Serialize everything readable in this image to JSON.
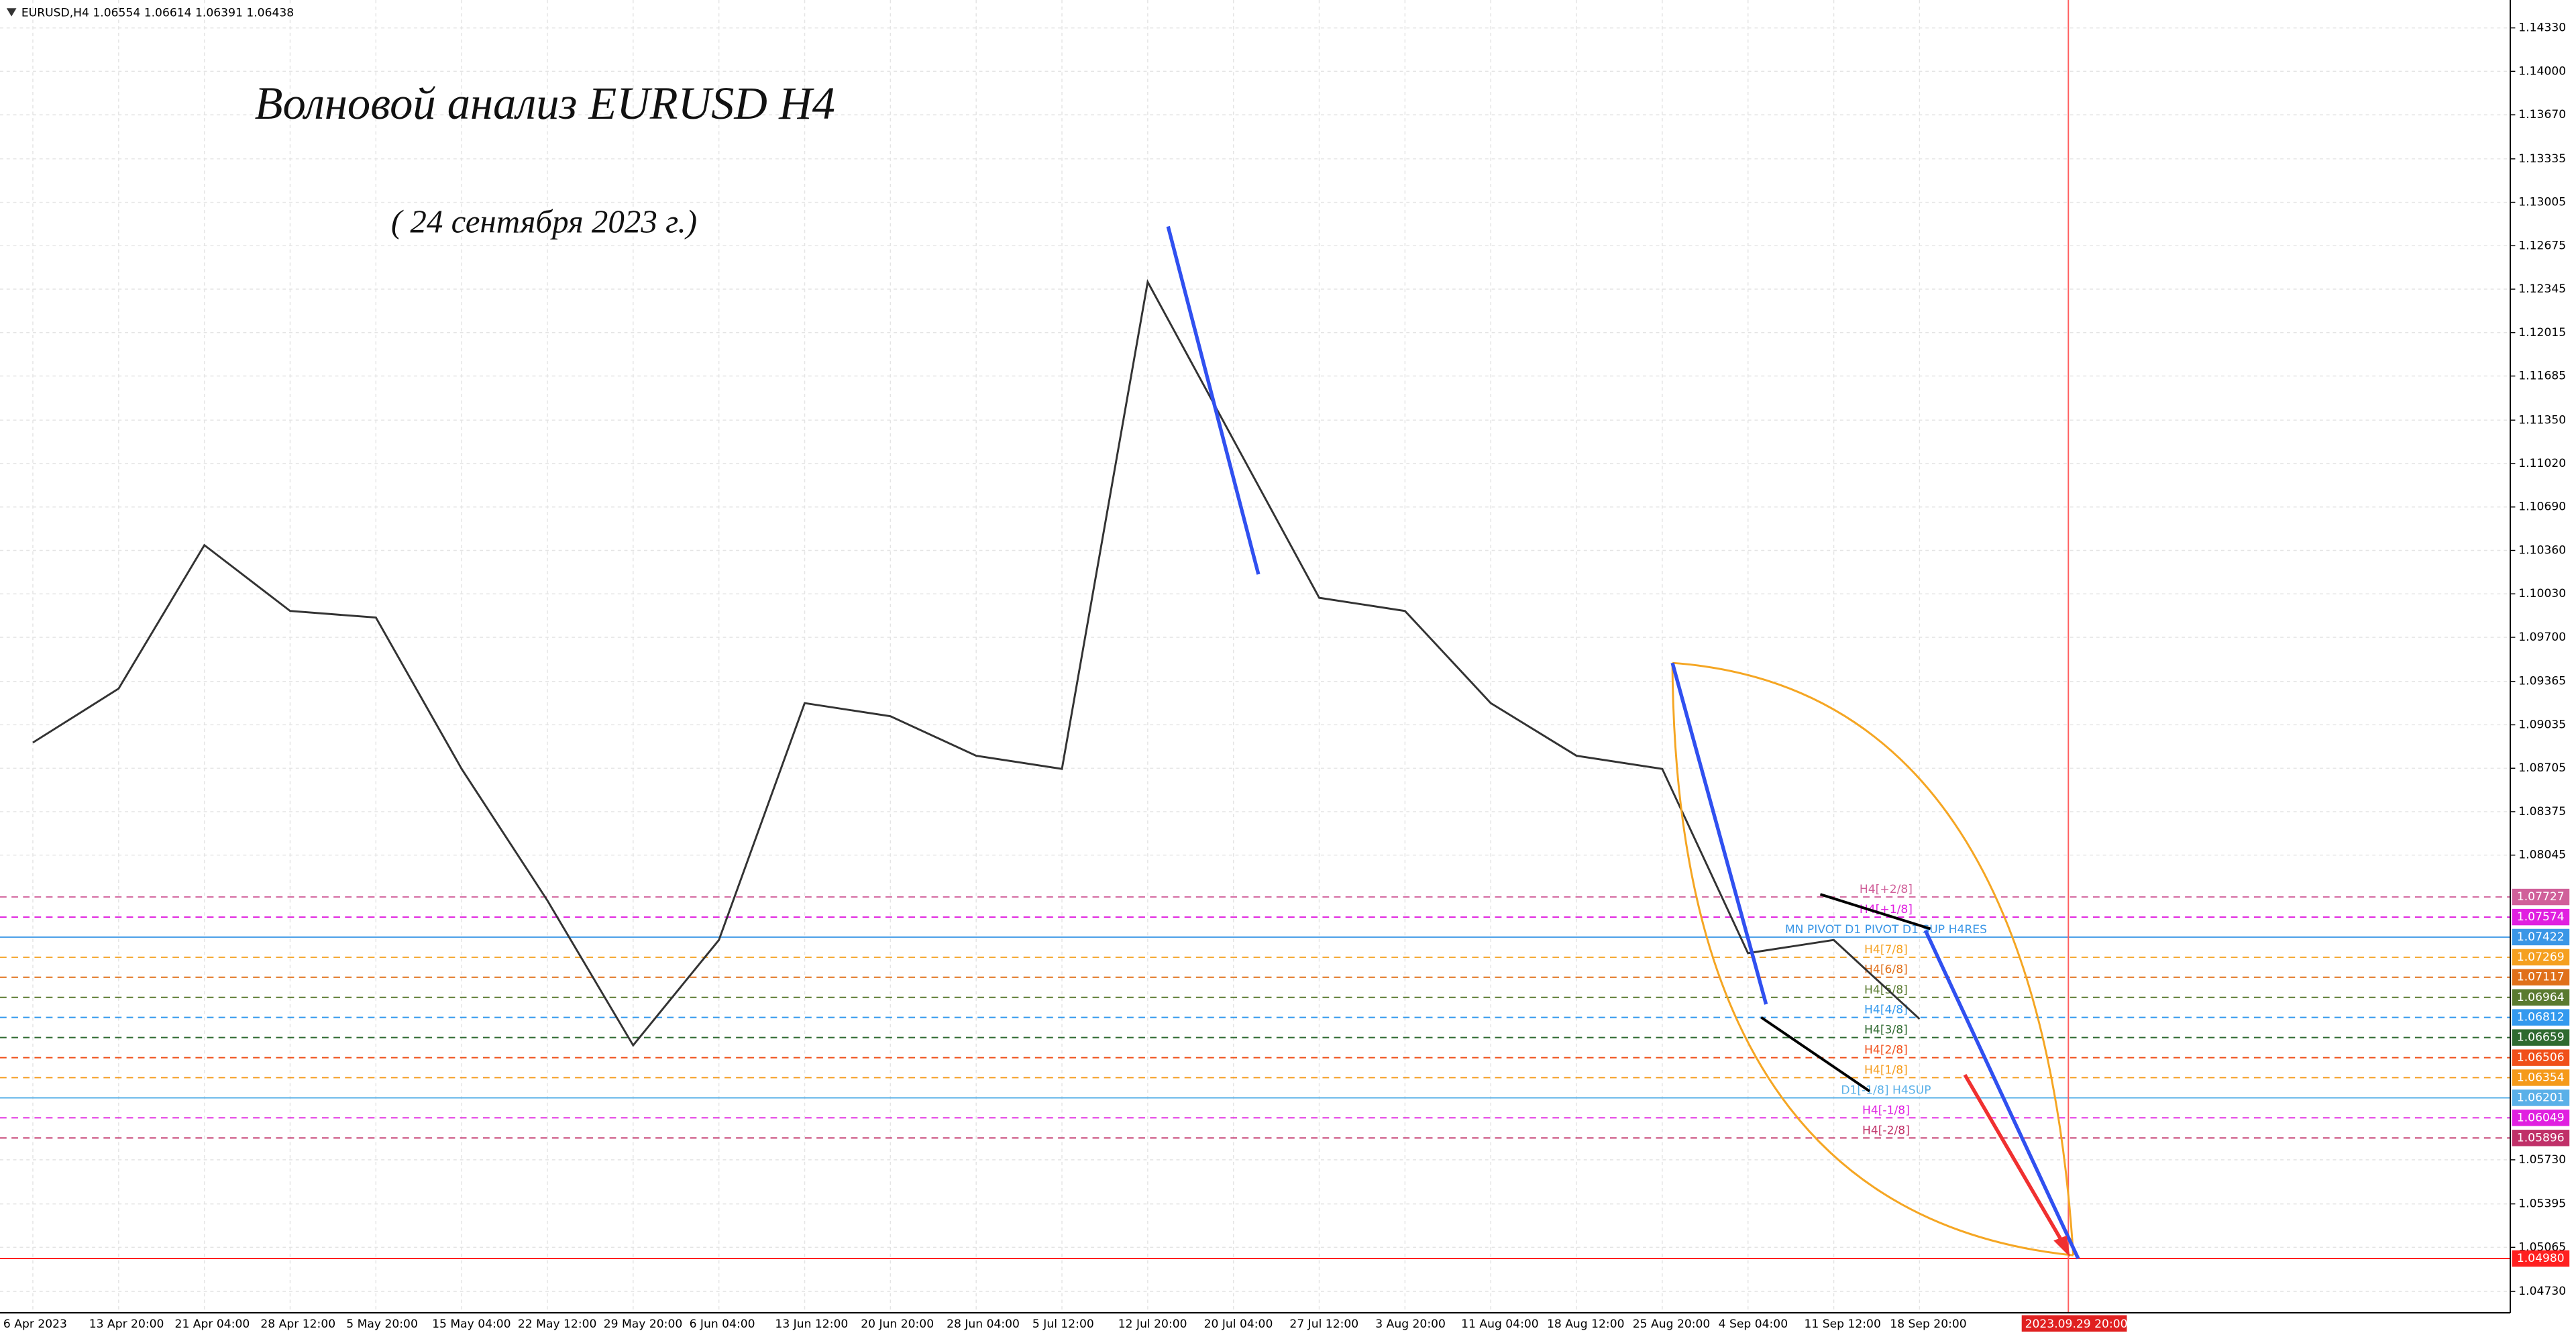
{
  "header": "EURUSD,H4  1.06554 1.06614 1.06391 1.06438",
  "chart_data": {
    "type": "line",
    "title": "Волновой анализ EURUSD H4",
    "subtitle": "( 24 сентября 2023 г.)",
    "categories": [
      "6 Apr 2023",
      "13 Apr 20:00",
      "21 Apr 04:00",
      "28 Apr 12:00",
      "5 May 20:00",
      "15 May 04:00",
      "22 May 12:00",
      "29 May 20:00",
      "6 Jun 04:00",
      "13 Jun 12:00",
      "20 Jun 20:00",
      "28 Jun 04:00",
      "5 Jul 12:00",
      "12 Jul 20:00",
      "20 Jul 04:00",
      "27 Jul 12:00",
      "3 Aug 20:00",
      "11 Aug 04:00",
      "18 Aug 12:00",
      "25 Aug 20:00",
      "4 Sep 04:00",
      "11 Sep 12:00",
      "18 Sep 20:00"
    ],
    "values": [
      1.089,
      1.0931,
      1.104,
      1.099,
      1.0985,
      1.087,
      1.077,
      1.066,
      1.074,
      1.092,
      1.091,
      1.088,
      1.087,
      1.124,
      1.112,
      1.1,
      1.099,
      1.092,
      1.088,
      1.087,
      1.073,
      1.074,
      1.068
    ],
    "color": "#333333",
    "cursor_time": "2023.09.29 20:00",
    "ylim": [
      1.04568,
      1.14542
    ],
    "yticks": [
      {
        "value": 1.1433,
        "label": "1.14330"
      },
      {
        "value": 1.14,
        "label": "1.14000"
      },
      {
        "value": 1.1367,
        "label": "1.13670"
      },
      1.13335,
      1.13005,
      1.12675,
      1.12345,
      1.12015,
      1.11685,
      {
        "value": 1.1135,
        "label": "1.11350"
      },
      {
        "value": 1.1102,
        "label": "1.11020"
      },
      {
        "value": 1.1069,
        "label": "1.10690"
      },
      {
        "value": 1.1036,
        "label": "1.10360"
      },
      {
        "value": 1.1003,
        "label": "1.10030"
      },
      {
        "value": 1.097,
        "label": "1.09700"
      },
      1.09365,
      1.09035,
      1.08705,
      1.08375,
      1.08045,
      {
        "value": 1.0573,
        "label": "1.05730"
      },
      1.05395,
      1.05065,
      {
        "value": 1.0473,
        "label": "1.04730"
      }
    ],
    "grid": true,
    "levels": [
      {
        "value": 1.07727,
        "label": "H4[+2/8]",
        "color": "#d0609a",
        "dashed": true
      },
      {
        "value": 1.07574,
        "label": "H4[+1/8]",
        "color": "#e020e0",
        "dashed": true
      },
      {
        "value": 1.07422,
        "label": "MN PIVOT D1 PIVOT D1 SUP H4RES",
        "color": "#3a96e6",
        "dashed": false
      },
      {
        "value": 1.07269,
        "label": "H4[7/8]",
        "color": "#f5a020",
        "dashed": true
      },
      {
        "value": 1.07117,
        "label": "H4[6/8]",
        "color": "#e0701a",
        "dashed": true
      },
      {
        "value": 1.06964,
        "label": "H4[5/8]",
        "color": "#5a7a30",
        "dashed": true
      },
      {
        "value": 1.06812,
        "label": "H4[4/8]",
        "color": "#3399ee",
        "dashed": true
      },
      {
        "value": 1.06659,
        "label": "H4[3/8]",
        "color": "#2f6a30",
        "dashed": true
      },
      {
        "value": 1.06506,
        "label": "H4[2/8]",
        "color": "#f0501a",
        "dashed": true
      },
      {
        "value": 1.06354,
        "label": "H4[1/8]",
        "color": "#f59a1a",
        "dashed": true
      },
      {
        "value": 1.06201,
        "label": "D1[-1/8] H4SUP",
        "color": "#5ab0e8",
        "dashed": false
      },
      {
        "value": 1.06049,
        "label": "H4[-1/8]",
        "color": "#e020e0",
        "dashed": true
      },
      {
        "value": 1.05896,
        "label": "H4[-2/8]",
        "color": "#c03068",
        "dashed": true
      },
      {
        "value": 1.0498,
        "value_label": "1.04980",
        "color": "#ff2020",
        "dashed": false
      }
    ]
  }
}
